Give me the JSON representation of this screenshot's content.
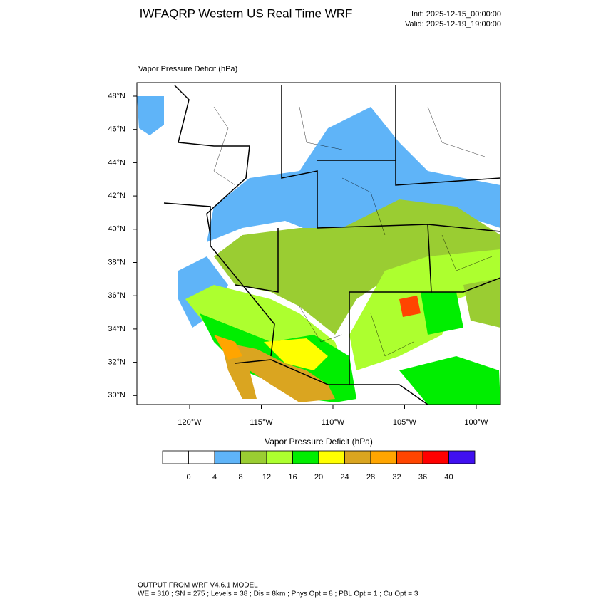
{
  "header": {
    "title": "IWFAQRP Western US Real Time WRF",
    "init": "Init: 2025-12-15_00:00:00",
    "valid": "Valid: 2025-12-19_19:00:00"
  },
  "map": {
    "field_label": "Vapor Pressure Deficit   (hPa)",
    "lat_labels": [
      "48°N",
      "46°N",
      "44°N",
      "42°N",
      "40°N",
      "38°N",
      "36°N",
      "34°N",
      "32°N",
      "30°N"
    ],
    "lon_labels": [
      "120°W",
      "115°W",
      "110°W",
      "105°W",
      "100°W"
    ]
  },
  "colorbar": {
    "title": "Vapor Pressure Deficit  (hPa)",
    "colors": [
      "#ffffff",
      "#ffffff",
      "#5fb4f8",
      "#9acd32",
      "#adff2f",
      "#00ee00",
      "#ffff00",
      "#daa520",
      "#ffa500",
      "#ff4500",
      "#ff0000",
      "#4010f0"
    ],
    "ticks": [
      0,
      4,
      8,
      12,
      16,
      20,
      24,
      28,
      32,
      36,
      40
    ]
  },
  "footer": {
    "line1": "OUTPUT FROM WRF V4.6.1 MODEL",
    "line2": "WE = 310 ; SN = 275 ; Levels = 38 ; Dis = 8km ; Phys Opt = 8 ; PBL Opt = 1 ; Cu Opt = 3"
  }
}
